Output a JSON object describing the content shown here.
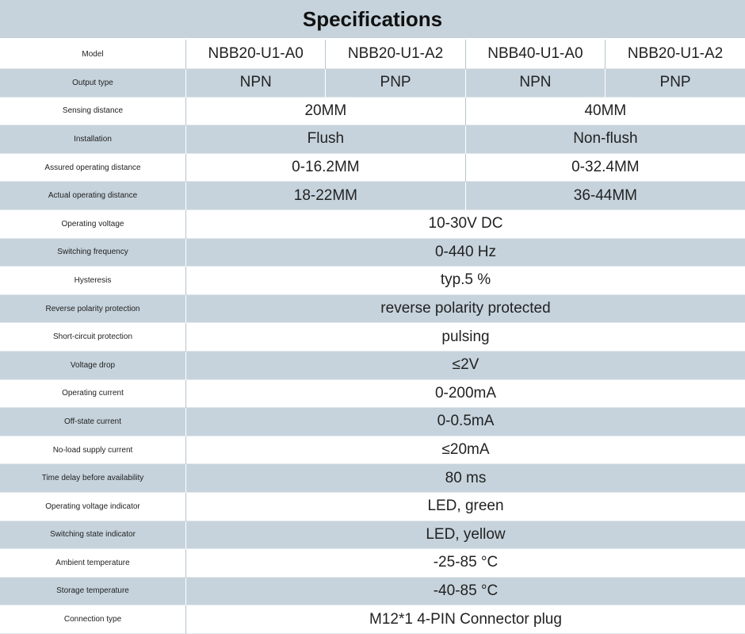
{
  "header": {
    "title": "Specifications"
  },
  "table": {
    "rows": [
      {
        "label": "Model",
        "cells": [
          "NBB20-U1-A0",
          "NBB20-U1-A2",
          "NBB40-U1-A0",
          "NBB20-U1-A2"
        ]
      },
      {
        "label": "Output type",
        "cells": [
          "NPN",
          "PNP",
          "NPN",
          "PNP"
        ]
      },
      {
        "label": "Sensing distance",
        "cells": [
          "20MM",
          "40MM"
        ]
      },
      {
        "label": "Installation",
        "cells": [
          "Flush",
          "Non-flush"
        ]
      },
      {
        "label": "Assured operating distance",
        "cells": [
          "0-16.2MM",
          "0-32.4MM"
        ]
      },
      {
        "label": "Actual operating distance",
        "cells": [
          "18-22MM",
          "36-44MM"
        ]
      },
      {
        "label": "Operating voltage",
        "cells": [
          "10-30V DC"
        ]
      },
      {
        "label": "Switching frequency",
        "cells": [
          "0-440 Hz"
        ]
      },
      {
        "label": "Hysteresis",
        "cells": [
          "typ.5 %"
        ]
      },
      {
        "label": "Reverse polarity protection",
        "cells": [
          "reverse polarity protected"
        ]
      },
      {
        "label": "Short-circuit protection",
        "cells": [
          "pulsing"
        ]
      },
      {
        "label": "Voltage drop",
        "cells": [
          "≤2V"
        ]
      },
      {
        "label": "Operating current",
        "cells": [
          "0-200mA"
        ]
      },
      {
        "label": "Off-state current",
        "cells": [
          "0-0.5mA"
        ]
      },
      {
        "label": "No-load supply current",
        "cells": [
          "≤20mA"
        ]
      },
      {
        "label": "Time delay before availability",
        "cells": [
          "80 ms"
        ]
      },
      {
        "label": "Operating voltage indicator",
        "cells": [
          "LED, green"
        ]
      },
      {
        "label": "Switching state indicator",
        "cells": [
          "LED, yellow"
        ]
      },
      {
        "label": "Ambient temperature",
        "cells": [
          "-25-85 °C"
        ]
      },
      {
        "label": "Storage temperature",
        "cells": [
          "-40-85 °C"
        ]
      },
      {
        "label": "Connection type",
        "cells": [
          "M12*1 4-PIN Connector plug"
        ]
      }
    ]
  }
}
